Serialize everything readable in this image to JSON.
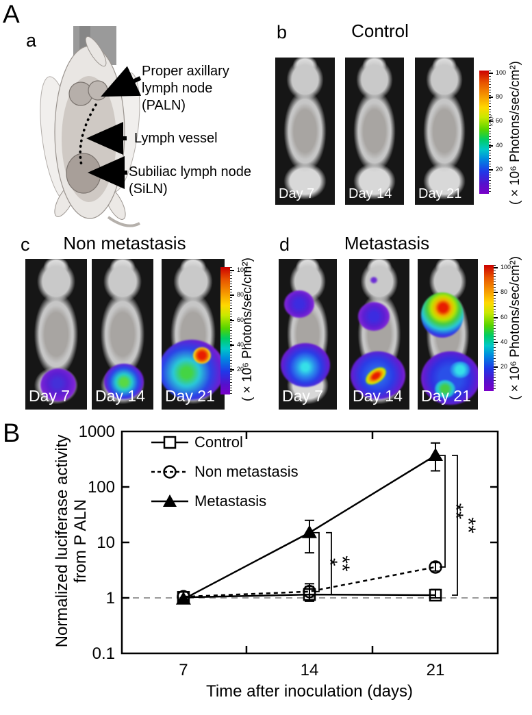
{
  "figure": {
    "panelA": {
      "label": "A",
      "a": {
        "label": "a",
        "annotations": {
          "paln": {
            "lines": [
              "Proper axillary",
              "lymph node",
              "(PALN)"
            ]
          },
          "vessel": {
            "lines": [
              "Lymph vessel"
            ]
          },
          "siln": {
            "lines": [
              "Subiliac lymph node",
              "(SiLN)"
            ]
          }
        }
      },
      "b": {
        "label": "b",
        "title": "Control",
        "days": [
          "Day 7",
          "Day 14",
          "Day 21"
        ]
      },
      "c": {
        "label": "c",
        "title": "Non metastasis",
        "days": [
          "Day 7",
          "Day 14",
          "Day 21"
        ]
      },
      "d": {
        "label": "d",
        "title": "Metastasis",
        "days": [
          "Day 7",
          "Day 14",
          "Day 21"
        ]
      },
      "colorbar": {
        "ticks": [
          "100",
          "80",
          "60",
          "40",
          "20"
        ],
        "exponent": "×10⁶",
        "unit": "( × 10⁶ Photons/sec/cm²)",
        "gradient_top": "#cc0000",
        "gradient_bottom": "#7a00c8"
      }
    },
    "panelB": {
      "label": "B"
    }
  },
  "chart_data": {
    "type": "line",
    "x": [
      7,
      14,
      21
    ],
    "xtick_labels": [
      "7",
      "14",
      "21"
    ],
    "x_minor_ticks": [
      10.5,
      17.5
    ],
    "xlim": [
      3.58,
      24.46
    ],
    "xlabel": "Time after inoculation (days)",
    "ylabel": "Normalized luciferase activity from P ALN",
    "ylabel_lines": [
      "Normalized luciferase activity",
      "from P ALN"
    ],
    "yscale": "log",
    "ylim": [
      0.1,
      1000
    ],
    "ytick_values": [
      1000,
      100,
      10,
      1,
      0.1
    ],
    "ytick_labels": [
      "1000",
      "100",
      "10",
      "1",
      "0.1"
    ],
    "reference_line_y": 1,
    "grid": false,
    "legend_position": "top-left",
    "series": [
      {
        "name": "Control",
        "marker": "open-square",
        "line_style": "solid",
        "values": [
          1.02,
          1.15,
          1.12
        ],
        "err_lo": [
          0,
          0.28,
          0.12
        ],
        "err_hi": [
          0,
          0.45,
          0.3
        ]
      },
      {
        "name": "Non metastasis",
        "marker": "open-circle",
        "line_style": "dashed",
        "values": [
          1.05,
          1.3,
          3.6
        ],
        "err_lo": [
          0,
          0.42,
          0.55
        ],
        "err_hi": [
          0,
          0.5,
          0.75
        ]
      },
      {
        "name": "Metastasis",
        "marker": "filled-triangle",
        "line_style": "solid",
        "values": [
          0.95,
          15,
          370
        ],
        "err_lo": [
          0,
          8.5,
          175
        ],
        "err_hi": [
          0,
          10,
          250
        ]
      }
    ],
    "significance": [
      {
        "day": 14,
        "label": "*",
        "upper": "Metastasis",
        "lower": "Non metastasis"
      },
      {
        "day": 14,
        "label": "**",
        "upper": "Metastasis",
        "lower": "Control"
      },
      {
        "day": 21,
        "label": "**",
        "upper": "Metastasis",
        "lower": "Non metastasis"
      },
      {
        "day": 21,
        "label": "**",
        "upper": "Metastasis",
        "lower": "Control"
      }
    ]
  }
}
